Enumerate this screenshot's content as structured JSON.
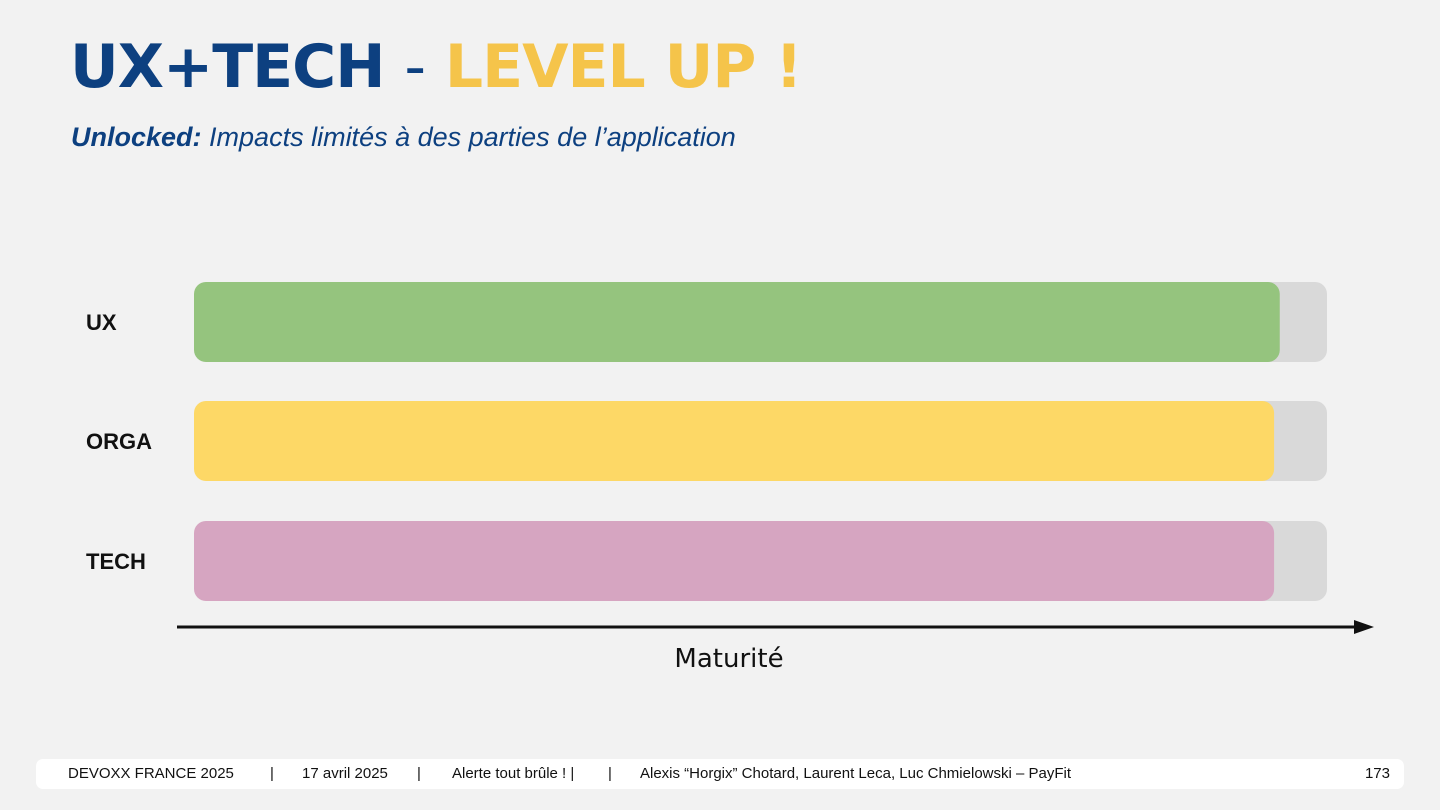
{
  "slide": {
    "title_main": "UX+TECH",
    "title_sep": "-",
    "title_accent": "LEVEL UP !",
    "subtitle_lead": "Unlocked:",
    "subtitle_rest": "Impacts limités à des parties de l’application",
    "colors": {
      "primary": "#0d4080",
      "accent": "#f5c44a",
      "background": "#f2f2f2",
      "track": "#d9d9d9"
    }
  },
  "chart_data": {
    "type": "bar",
    "orientation": "horizontal",
    "categories": [
      "UX",
      "ORGA",
      "TECH"
    ],
    "values": [
      96,
      95.5,
      95.5
    ],
    "max": 100,
    "colors": [
      "#95c47e",
      "#fdd866",
      "#d6a5c1"
    ],
    "xlabel": "Maturité",
    "title": "",
    "grid": false
  },
  "footer": {
    "event": "DEVOXX FRANCE 2025",
    "sep1": "|",
    "date": "17 avril 2025",
    "sep2": "|",
    "talk": "Alerte tout brûle !  |",
    "sep3": "|",
    "authors": "Alexis “Horgix” Chotard, Laurent Leca, Luc Chmielowski – PayFit",
    "page": "173"
  }
}
